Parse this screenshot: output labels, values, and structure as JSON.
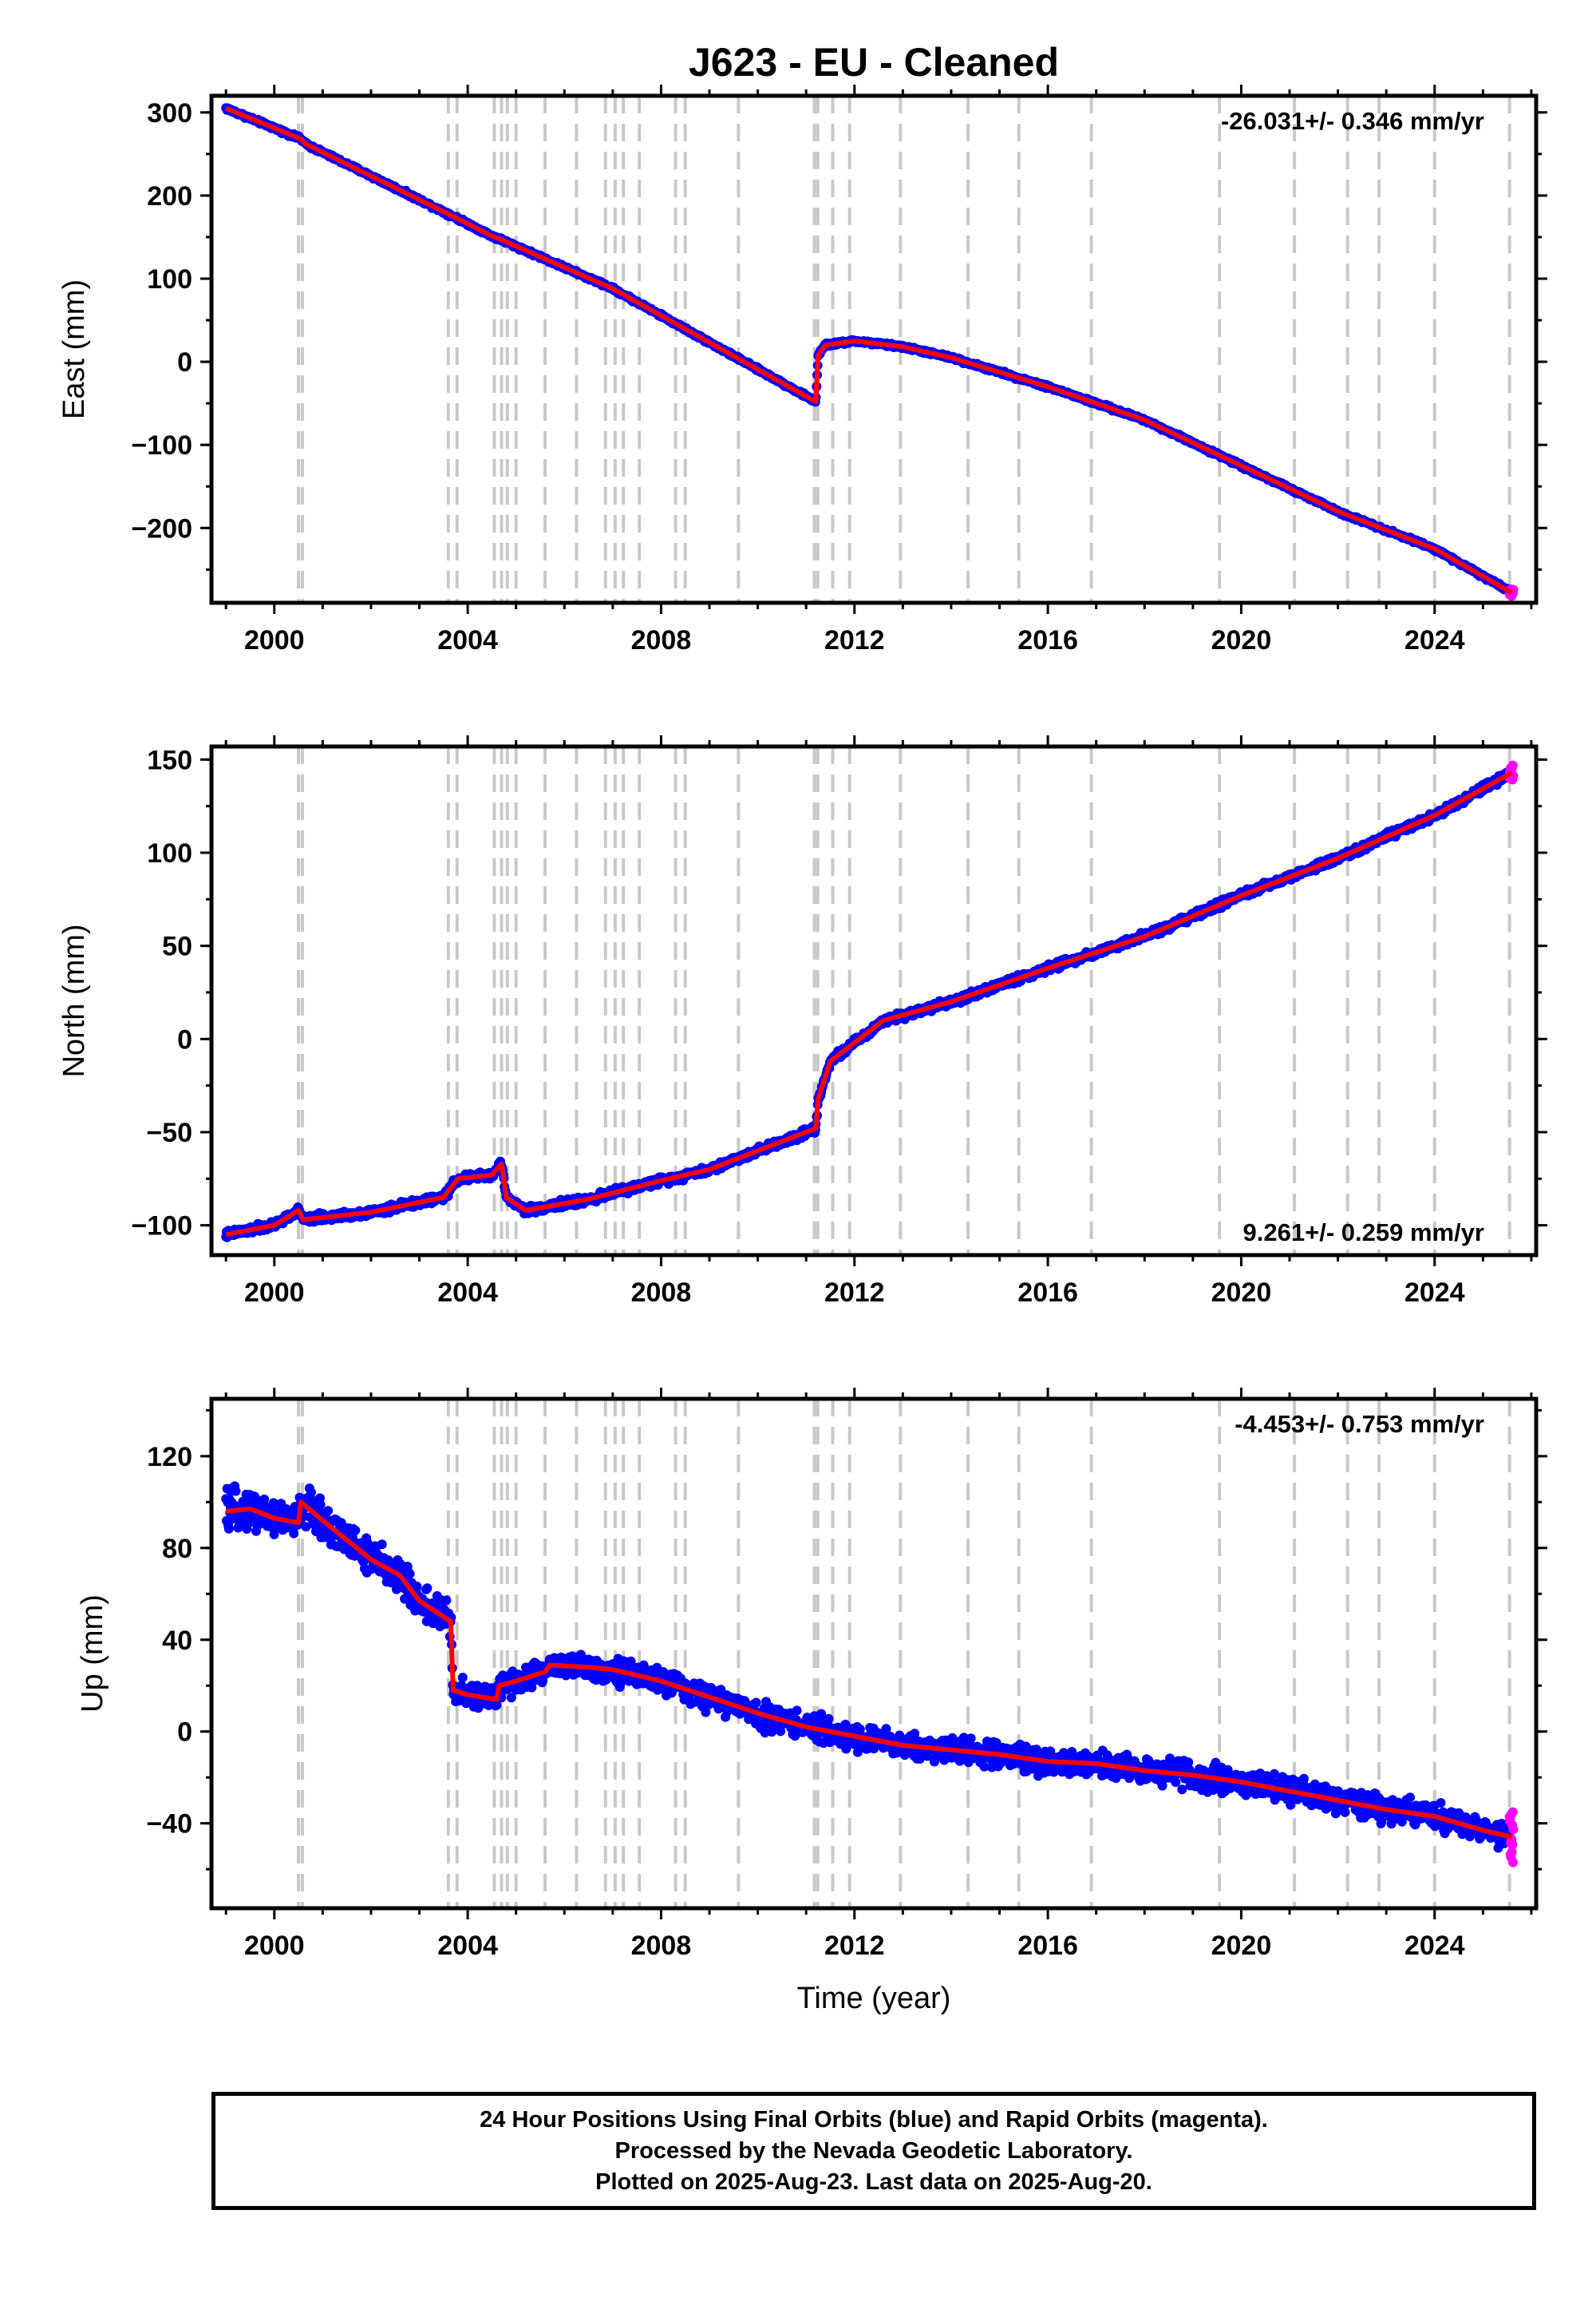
{
  "figure": {
    "title": "J623  - EU - Cleaned",
    "x_axis_label": "Time (year)"
  },
  "footer": {
    "line1": "24 Hour Positions Using Final Orbits (blue) and Rapid Orbits (magenta).",
    "line2": "Processed by the Nevada Geodetic Laboratory.",
    "line3": "Plotted on 2025-Aug-23. Last data on 2025-Aug-20."
  },
  "colors": {
    "final_orbits": "#0000ff",
    "rapid_orbits": "#ff00ff",
    "model_fit": "#ff0000",
    "event_lines": "#c8c8c8"
  },
  "chart_data": [
    {
      "type": "scatter",
      "panel": "east",
      "ylabel": "East (mm)",
      "rate_text": "-26.031+/- 0.346 mm/yr",
      "rate_position": "top-right",
      "xlim": [
        1998.7,
        2026.1
      ],
      "ylim": [
        -290,
        320
      ],
      "xticks": [
        2000,
        2004,
        2008,
        2012,
        2016,
        2020,
        2024
      ],
      "yticks": [
        -200,
        -100,
        0,
        100,
        200,
        300
      ],
      "ytick_labels": [
        "−200",
        "−100",
        "0",
        "100",
        "200",
        "300"
      ],
      "grid": false,
      "fit_polyline": [
        [
          1999.0,
          305
        ],
        [
          2000.55,
          268
        ],
        [
          2000.65,
          262
        ],
        [
          2003.7,
          175
        ],
        [
          2004.55,
          150
        ],
        [
          2004.65,
          148
        ],
        [
          2007.0,
          88
        ],
        [
          2011.2,
          -48
        ],
        [
          2011.25,
          8
        ],
        [
          2011.4,
          20
        ],
        [
          2012.0,
          25
        ],
        [
          2013.0,
          18
        ],
        [
          2014.0,
          5
        ],
        [
          2016.0,
          -30
        ],
        [
          2018.0,
          -70
        ],
        [
          2020.0,
          -125
        ],
        [
          2022.0,
          -180
        ],
        [
          2024.0,
          -225
        ],
        [
          2025.6,
          -278
        ]
      ],
      "scatter_noise_mm": 3,
      "rapid_orbit_range": [
        2025.55,
        2025.63
      ],
      "event_lines": [
        2000.5,
        2000.58,
        2003.6,
        2003.78,
        2004.55,
        2004.7,
        2004.82,
        2005.0,
        2005.6,
        2006.25,
        2006.85,
        2007.05,
        2007.22,
        2007.55,
        2008.3,
        2008.5,
        2009.6,
        2011.17,
        2011.24,
        2011.55,
        2011.9,
        2012.95,
        2014.35,
        2015.4,
        2016.9,
        2019.55,
        2021.1,
        2022.2,
        2022.85,
        2024.0,
        2025.55
      ]
    },
    {
      "type": "scatter",
      "panel": "north",
      "ylabel": "North (mm)",
      "rate_text": "9.261+/- 0.259 mm/yr",
      "rate_position": "bottom-right",
      "xlim": [
        1998.7,
        2026.1
      ],
      "ylim": [
        -116,
        157
      ],
      "xticks": [
        2000,
        2004,
        2008,
        2012,
        2016,
        2020,
        2024
      ],
      "yticks": [
        -100,
        -50,
        0,
        50,
        100,
        150
      ],
      "ytick_labels": [
        "−100",
        "−50",
        "0",
        "50",
        "100",
        "150"
      ],
      "grid": false,
      "fit_polyline": [
        [
          1999.0,
          -105
        ],
        [
          2000.0,
          -100
        ],
        [
          2000.5,
          -92
        ],
        [
          2000.6,
          -97
        ],
        [
          2002.0,
          -93
        ],
        [
          2003.5,
          -85
        ],
        [
          2003.8,
          -75
        ],
        [
          2004.5,
          -73
        ],
        [
          2004.7,
          -67
        ],
        [
          2004.8,
          -85
        ],
        [
          2005.2,
          -92
        ],
        [
          2006.5,
          -86
        ],
        [
          2008.0,
          -76
        ],
        [
          2009.0,
          -70
        ],
        [
          2010.0,
          -60
        ],
        [
          2011.2,
          -48
        ],
        [
          2011.25,
          -32
        ],
        [
          2011.5,
          -12
        ],
        [
          2012.0,
          -2
        ],
        [
          2012.6,
          10
        ],
        [
          2014.0,
          20
        ],
        [
          2016.0,
          38
        ],
        [
          2018.0,
          55
        ],
        [
          2020.0,
          77
        ],
        [
          2022.0,
          97
        ],
        [
          2024.0,
          120
        ],
        [
          2025.6,
          143
        ]
      ],
      "scatter_noise_mm": 3,
      "rapid_orbit_range": [
        2025.55,
        2025.63
      ],
      "event_lines": [
        2000.5,
        2000.58,
        2003.6,
        2003.78,
        2004.55,
        2004.7,
        2004.82,
        2005.0,
        2005.6,
        2006.25,
        2006.85,
        2007.05,
        2007.22,
        2007.55,
        2008.3,
        2008.5,
        2009.6,
        2011.17,
        2011.24,
        2011.55,
        2011.9,
        2012.95,
        2014.35,
        2015.4,
        2016.9,
        2019.55,
        2021.1,
        2022.2,
        2022.85,
        2024.0,
        2025.55
      ]
    },
    {
      "type": "scatter",
      "panel": "up",
      "ylabel": "Up (mm)",
      "rate_text": "-4.453+/- 0.753 mm/yr",
      "rate_position": "top-right",
      "xlim": [
        1998.7,
        2026.1
      ],
      "ylim": [
        -77,
        145
      ],
      "xticks": [
        2000,
        2004,
        2008,
        2012,
        2016,
        2020,
        2024
      ],
      "yticks": [
        -40,
        0,
        40,
        80,
        120
      ],
      "ytick_labels": [
        "−40",
        "0",
        "40",
        "80",
        "120"
      ],
      "grid": false,
      "fit_polyline": [
        [
          1999.0,
          96
        ],
        [
          1999.5,
          97
        ],
        [
          2000.0,
          93
        ],
        [
          2000.5,
          91
        ],
        [
          2000.55,
          100
        ],
        [
          2001.0,
          92
        ],
        [
          2002.0,
          75
        ],
        [
          2002.6,
          68
        ],
        [
          2003.0,
          57
        ],
        [
          2003.5,
          50
        ],
        [
          2003.65,
          48
        ],
        [
          2003.7,
          18
        ],
        [
          2004.0,
          16
        ],
        [
          2004.6,
          14
        ],
        [
          2004.65,
          20
        ],
        [
          2005.0,
          22
        ],
        [
          2005.6,
          26
        ],
        [
          2005.7,
          29
        ],
        [
          2006.5,
          28
        ],
        [
          2007.0,
          27
        ],
        [
          2008.0,
          22
        ],
        [
          2009.0,
          15
        ],
        [
          2010.0,
          8
        ],
        [
          2011.0,
          2
        ],
        [
          2012.0,
          -2
        ],
        [
          2013.0,
          -6
        ],
        [
          2014.0,
          -8
        ],
        [
          2015.0,
          -10
        ],
        [
          2016.0,
          -13
        ],
        [
          2017.0,
          -14
        ],
        [
          2018.0,
          -17
        ],
        [
          2019.0,
          -19
        ],
        [
          2020.0,
          -22
        ],
        [
          2021.0,
          -26
        ],
        [
          2022.0,
          -30
        ],
        [
          2023.0,
          -34
        ],
        [
          2024.0,
          -37
        ],
        [
          2025.0,
          -43
        ],
        [
          2025.6,
          -46
        ]
      ],
      "scatter_noise_mm": 8,
      "rapid_orbit_range": [
        2025.55,
        2025.63
      ],
      "event_lines": [
        2000.5,
        2000.58,
        2003.6,
        2003.78,
        2004.55,
        2004.7,
        2004.82,
        2005.0,
        2005.6,
        2006.25,
        2006.85,
        2007.05,
        2007.22,
        2007.55,
        2008.3,
        2008.5,
        2009.6,
        2011.17,
        2011.24,
        2011.55,
        2011.9,
        2012.95,
        2014.35,
        2015.4,
        2016.9,
        2019.55,
        2021.1,
        2022.2,
        2022.85,
        2024.0,
        2025.55
      ]
    }
  ]
}
